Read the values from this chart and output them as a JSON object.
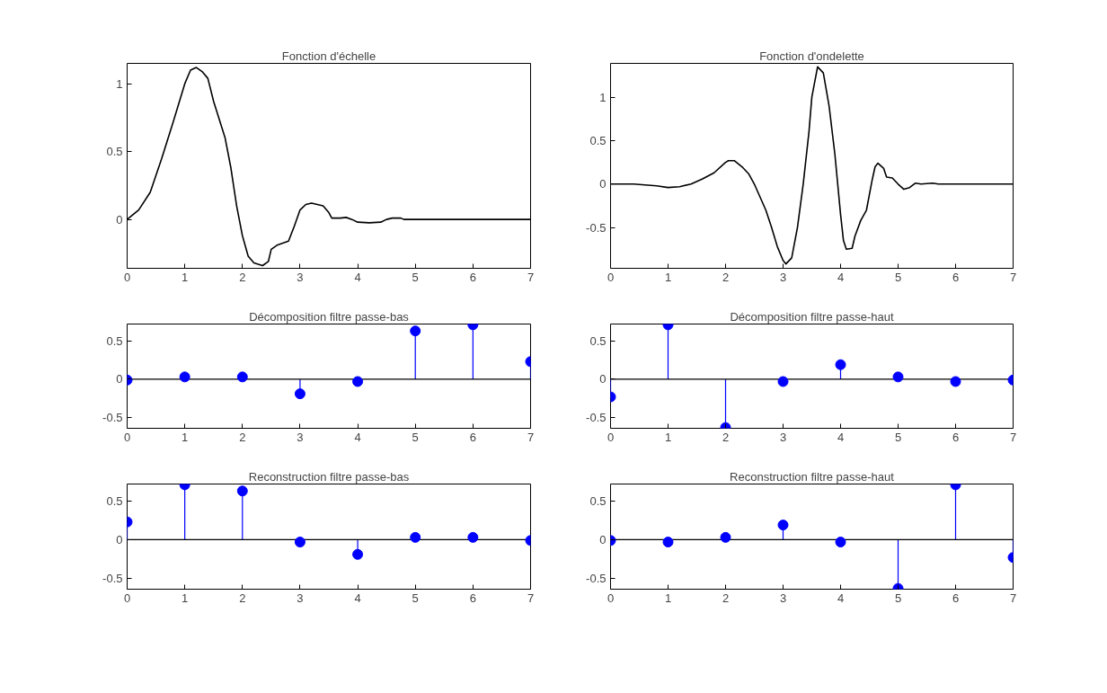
{
  "chart_data": [
    {
      "type": "line",
      "title": "Fonction d'échelle",
      "color": "#000000",
      "xlim": [
        0,
        7
      ],
      "xticks": [
        0,
        1,
        2,
        3,
        4,
        5,
        6,
        7
      ],
      "ylim": [
        -0.36,
        1.15
      ],
      "yticks": [
        0,
        0.5,
        1
      ],
      "x": [
        0,
        0.2,
        0.4,
        0.6,
        0.8,
        1.0,
        1.1,
        1.2,
        1.3,
        1.4,
        1.5,
        1.7,
        1.8,
        1.9,
        2.0,
        2.1,
        2.2,
        2.35,
        2.45,
        2.5,
        2.6,
        2.8,
        2.9,
        3.0,
        3.1,
        3.2,
        3.4,
        3.5,
        3.55,
        3.7,
        3.8,
        3.9,
        4.0,
        4.2,
        4.4,
        4.5,
        4.6,
        4.75,
        4.8,
        7
      ],
      "values": [
        0,
        0.07,
        0.2,
        0.45,
        0.72,
        1.0,
        1.1,
        1.12,
        1.09,
        1.04,
        0.87,
        0.6,
        0.38,
        0.1,
        -0.12,
        -0.27,
        -0.32,
        -0.34,
        -0.31,
        -0.22,
        -0.19,
        -0.16,
        -0.05,
        0.07,
        0.11,
        0.12,
        0.1,
        0.05,
        0.01,
        0.01,
        0.015,
        0,
        -0.02,
        -0.025,
        -0.02,
        0,
        0.01,
        0.01,
        0,
        0
      ]
    },
    {
      "type": "line",
      "title": "Fonction d'ondelette",
      "color": "#000000",
      "xlim": [
        0,
        7
      ],
      "xticks": [
        0,
        1,
        2,
        3,
        4,
        5,
        6,
        7
      ],
      "ylim": [
        -0.97,
        1.39
      ],
      "yticks": [
        -0.5,
        0,
        0.5,
        1
      ],
      "x": [
        0,
        0.4,
        0.8,
        1.0,
        1.2,
        1.4,
        1.6,
        1.8,
        2.0,
        2.05,
        2.15,
        2.3,
        2.4,
        2.5,
        2.6,
        2.7,
        2.8,
        2.9,
        3.0,
        3.05,
        3.15,
        3.25,
        3.35,
        3.45,
        3.5,
        3.6,
        3.7,
        3.8,
        3.9,
        4.0,
        4.05,
        4.1,
        4.2,
        4.25,
        4.35,
        4.45,
        4.55,
        4.6,
        4.65,
        4.75,
        4.8,
        4.9,
        5.0,
        5.1,
        5.2,
        5.3,
        5.4,
        5.6,
        5.7,
        7
      ],
      "values": [
        0,
        0,
        -0.02,
        -0.04,
        -0.03,
        0,
        0.06,
        0.13,
        0.25,
        0.27,
        0.27,
        0.19,
        0.12,
        0,
        -0.15,
        -0.3,
        -0.5,
        -0.72,
        -0.88,
        -0.92,
        -0.85,
        -0.5,
        0,
        0.6,
        1.0,
        1.35,
        1.28,
        0.9,
        0.35,
        -0.35,
        -0.65,
        -0.75,
        -0.74,
        -0.6,
        -0.42,
        -0.3,
        0.05,
        0.2,
        0.24,
        0.18,
        0.08,
        0.07,
        0,
        -0.06,
        -0.04,
        0.01,
        0,
        0.01,
        0,
        0
      ]
    },
    {
      "type": "lollipop",
      "title": "Décomposition filtre passe-bas",
      "color": "#0000ff",
      "marker": "circle",
      "xlim": [
        0,
        7
      ],
      "xticks": [
        0,
        1,
        2,
        3,
        4,
        5,
        6,
        7
      ],
      "ylim": [
        -0.64,
        0.72
      ],
      "yticks": [
        -0.5,
        0,
        0.5
      ],
      "x": [
        0,
        1,
        2,
        3,
        4,
        5,
        6,
        7
      ],
      "values": [
        -0.01,
        0.03,
        0.03,
        -0.19,
        -0.03,
        0.63,
        0.71,
        0.23
      ]
    },
    {
      "type": "lollipop",
      "title": "Décomposition filtre passe-haut",
      "color": "#0000ff",
      "marker": "circle",
      "xlim": [
        0,
        7
      ],
      "xticks": [
        0,
        1,
        2,
        3,
        4,
        5,
        6,
        7
      ],
      "ylim": [
        -0.64,
        0.72
      ],
      "yticks": [
        -0.5,
        0,
        0.5
      ],
      "x": [
        0,
        1,
        2,
        3,
        4,
        5,
        6,
        7
      ],
      "values": [
        -0.23,
        0.71,
        -0.63,
        -0.03,
        0.19,
        0.03,
        -0.03,
        -0.01
      ]
    },
    {
      "type": "lollipop",
      "title": "Reconstruction filtre passe-bas",
      "color": "#0000ff",
      "marker": "circle",
      "xlim": [
        0,
        7
      ],
      "xticks": [
        0,
        1,
        2,
        3,
        4,
        5,
        6,
        7
      ],
      "ylim": [
        -0.64,
        0.72
      ],
      "yticks": [
        -0.5,
        0,
        0.5
      ],
      "x": [
        0,
        1,
        2,
        3,
        4,
        5,
        6,
        7
      ],
      "values": [
        0.23,
        0.71,
        0.63,
        -0.03,
        -0.19,
        0.03,
        0.03,
        -0.01
      ]
    },
    {
      "type": "lollipop",
      "title": "Reconstruction filtre passe-haut",
      "color": "#0000ff",
      "marker": "circle",
      "xlim": [
        0,
        7
      ],
      "xticks": [
        0,
        1,
        2,
        3,
        4,
        5,
        6,
        7
      ],
      "ylim": [
        -0.64,
        0.72
      ],
      "yticks": [
        -0.5,
        0,
        0.5
      ],
      "x": [
        0,
        1,
        2,
        3,
        4,
        5,
        6,
        7
      ],
      "values": [
        -0.01,
        -0.03,
        0.03,
        0.19,
        -0.03,
        -0.63,
        0.71,
        -0.23
      ]
    }
  ]
}
